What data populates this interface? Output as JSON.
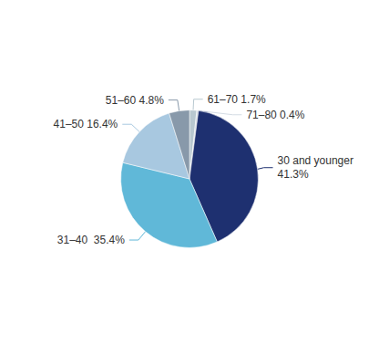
{
  "chart_data": {
    "type": "pie",
    "values": [
      1.7,
      0.4,
      41.3,
      35.4,
      16.4,
      4.8
    ],
    "colors": [
      "#b8c8d0",
      "#d4dce4",
      "#1e3070",
      "#60b8d8",
      "#a8c8e0",
      "#8899aa"
    ],
    "annotations": [
      "61–70 1.7%",
      "71–80 0.4%",
      "30 and younger\n41.3%",
      "31–40  35.4%",
      "41–50 16.4%",
      "51–60 4.8%"
    ]
  }
}
